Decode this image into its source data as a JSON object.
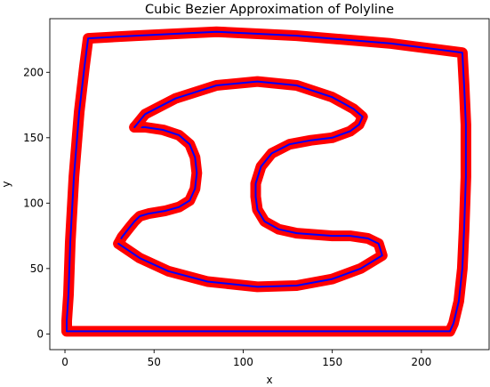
{
  "chart_data": {
    "type": "line",
    "title": "Cubic Bezier Approximation of Polyline",
    "xlabel": "x",
    "ylabel": "y",
    "xlim": [
      -8.5,
      238
    ],
    "ylim": [
      -12,
      241
    ],
    "xticks": [
      0,
      50,
      100,
      150,
      200
    ],
    "yticks": [
      0,
      50,
      100,
      150,
      200
    ],
    "grid": false,
    "colors": {
      "thick": "#ff0000",
      "thin": "#0000ff"
    },
    "series": [
      {
        "points": [
          [
            1,
            2
          ],
          [
            216,
            2
          ],
          [
            218,
            8
          ],
          [
            221,
            25
          ],
          [
            223,
            50
          ],
          [
            224,
            80
          ],
          [
            225,
            120
          ],
          [
            225,
            160
          ],
          [
            224,
            190
          ],
          [
            223,
            215
          ],
          [
            183,
            222
          ],
          [
            130,
            228
          ],
          [
            85,
            231
          ],
          [
            40,
            228
          ],
          [
            13,
            226
          ],
          [
            11,
            205
          ],
          [
            8,
            170
          ],
          [
            5,
            120
          ],
          [
            3,
            70
          ],
          [
            2,
            30
          ],
          [
            1,
            10
          ],
          [
            1,
            2
          ]
        ]
      },
      {
        "points": [
          [
            39,
            158
          ],
          [
            45,
            158
          ],
          [
            55,
            156
          ],
          [
            64,
            152
          ],
          [
            70,
            145
          ],
          [
            73,
            135
          ],
          [
            74,
            123
          ],
          [
            73,
            111
          ],
          [
            70,
            102
          ],
          [
            64,
            97
          ],
          [
            56,
            94
          ],
          [
            47,
            92
          ],
          [
            42,
            90
          ],
          [
            39,
            86
          ],
          [
            36,
            81
          ],
          [
            32,
            74
          ],
          [
            30,
            69
          ]
        ]
      },
      {
        "points": [
          [
            30,
            69
          ],
          [
            42,
            58
          ],
          [
            58,
            48
          ],
          [
            80,
            40
          ],
          [
            108,
            36
          ],
          [
            130,
            37
          ],
          [
            150,
            42
          ],
          [
            166,
            50
          ],
          [
            178,
            60
          ],
          [
            176,
            69
          ],
          [
            170,
            73
          ],
          [
            160,
            75
          ],
          [
            150,
            75
          ],
          [
            140,
            76
          ],
          [
            130,
            77
          ],
          [
            120,
            80
          ],
          [
            112,
            86
          ],
          [
            108,
            95
          ],
          [
            107,
            105
          ],
          [
            107,
            115
          ],
          [
            110,
            128
          ],
          [
            116,
            138
          ],
          [
            126,
            145
          ],
          [
            138,
            148
          ],
          [
            150,
            150
          ],
          [
            160,
            155
          ],
          [
            165,
            160
          ],
          [
            167,
            166
          ],
          [
            162,
            172
          ],
          [
            150,
            181
          ],
          [
            130,
            190
          ],
          [
            108,
            193
          ],
          [
            85,
            190
          ],
          [
            62,
            180
          ],
          [
            45,
            168
          ],
          [
            39,
            158
          ]
        ]
      }
    ]
  }
}
